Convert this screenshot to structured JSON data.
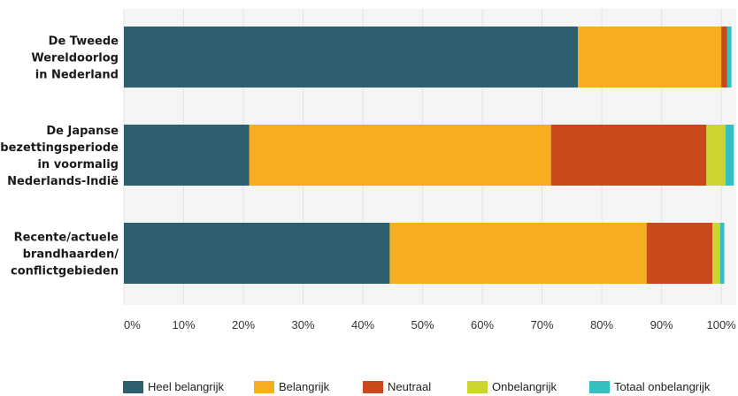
{
  "chart_data": {
    "type": "bar",
    "orientation": "horizontal",
    "stacked": true,
    "categories": [
      [
        "De Tweede",
        "Wereldoorlog",
        "in Nederland"
      ],
      [
        "De Japanse",
        "bezettingsperiode",
        "in voormalig",
        "Nederlands-Indië"
      ],
      [
        "Recente/actuele",
        "brandhaarden/",
        "conflictgebieden"
      ]
    ],
    "series": [
      {
        "name": "Heel belangrijk",
        "color": "#2e5f6e",
        "values": [
          76,
          21,
          44.5
        ]
      },
      {
        "name": "Belangrijk",
        "color": "#f6ad1f",
        "values": [
          24,
          50.5,
          43
        ]
      },
      {
        "name": "Neutraal",
        "color": "#c9481c",
        "values": [
          1,
          26,
          11
        ]
      },
      {
        "name": "Onbelangrijk",
        "color": "#cbd531",
        "values": [
          0,
          3.2,
          1.3
        ]
      },
      {
        "name": "Totaal onbelangrijk",
        "color": "#35bfc1",
        "values": [
          0.7,
          1.4,
          0.7
        ]
      }
    ],
    "x_ticks": [
      "0%",
      "10%",
      "20%",
      "30%",
      "40%",
      "50%",
      "60%",
      "70%",
      "80%",
      "90%",
      "100%"
    ],
    "xlim": [
      0,
      102.5
    ],
    "grid": true,
    "legend_position": "bottom"
  }
}
